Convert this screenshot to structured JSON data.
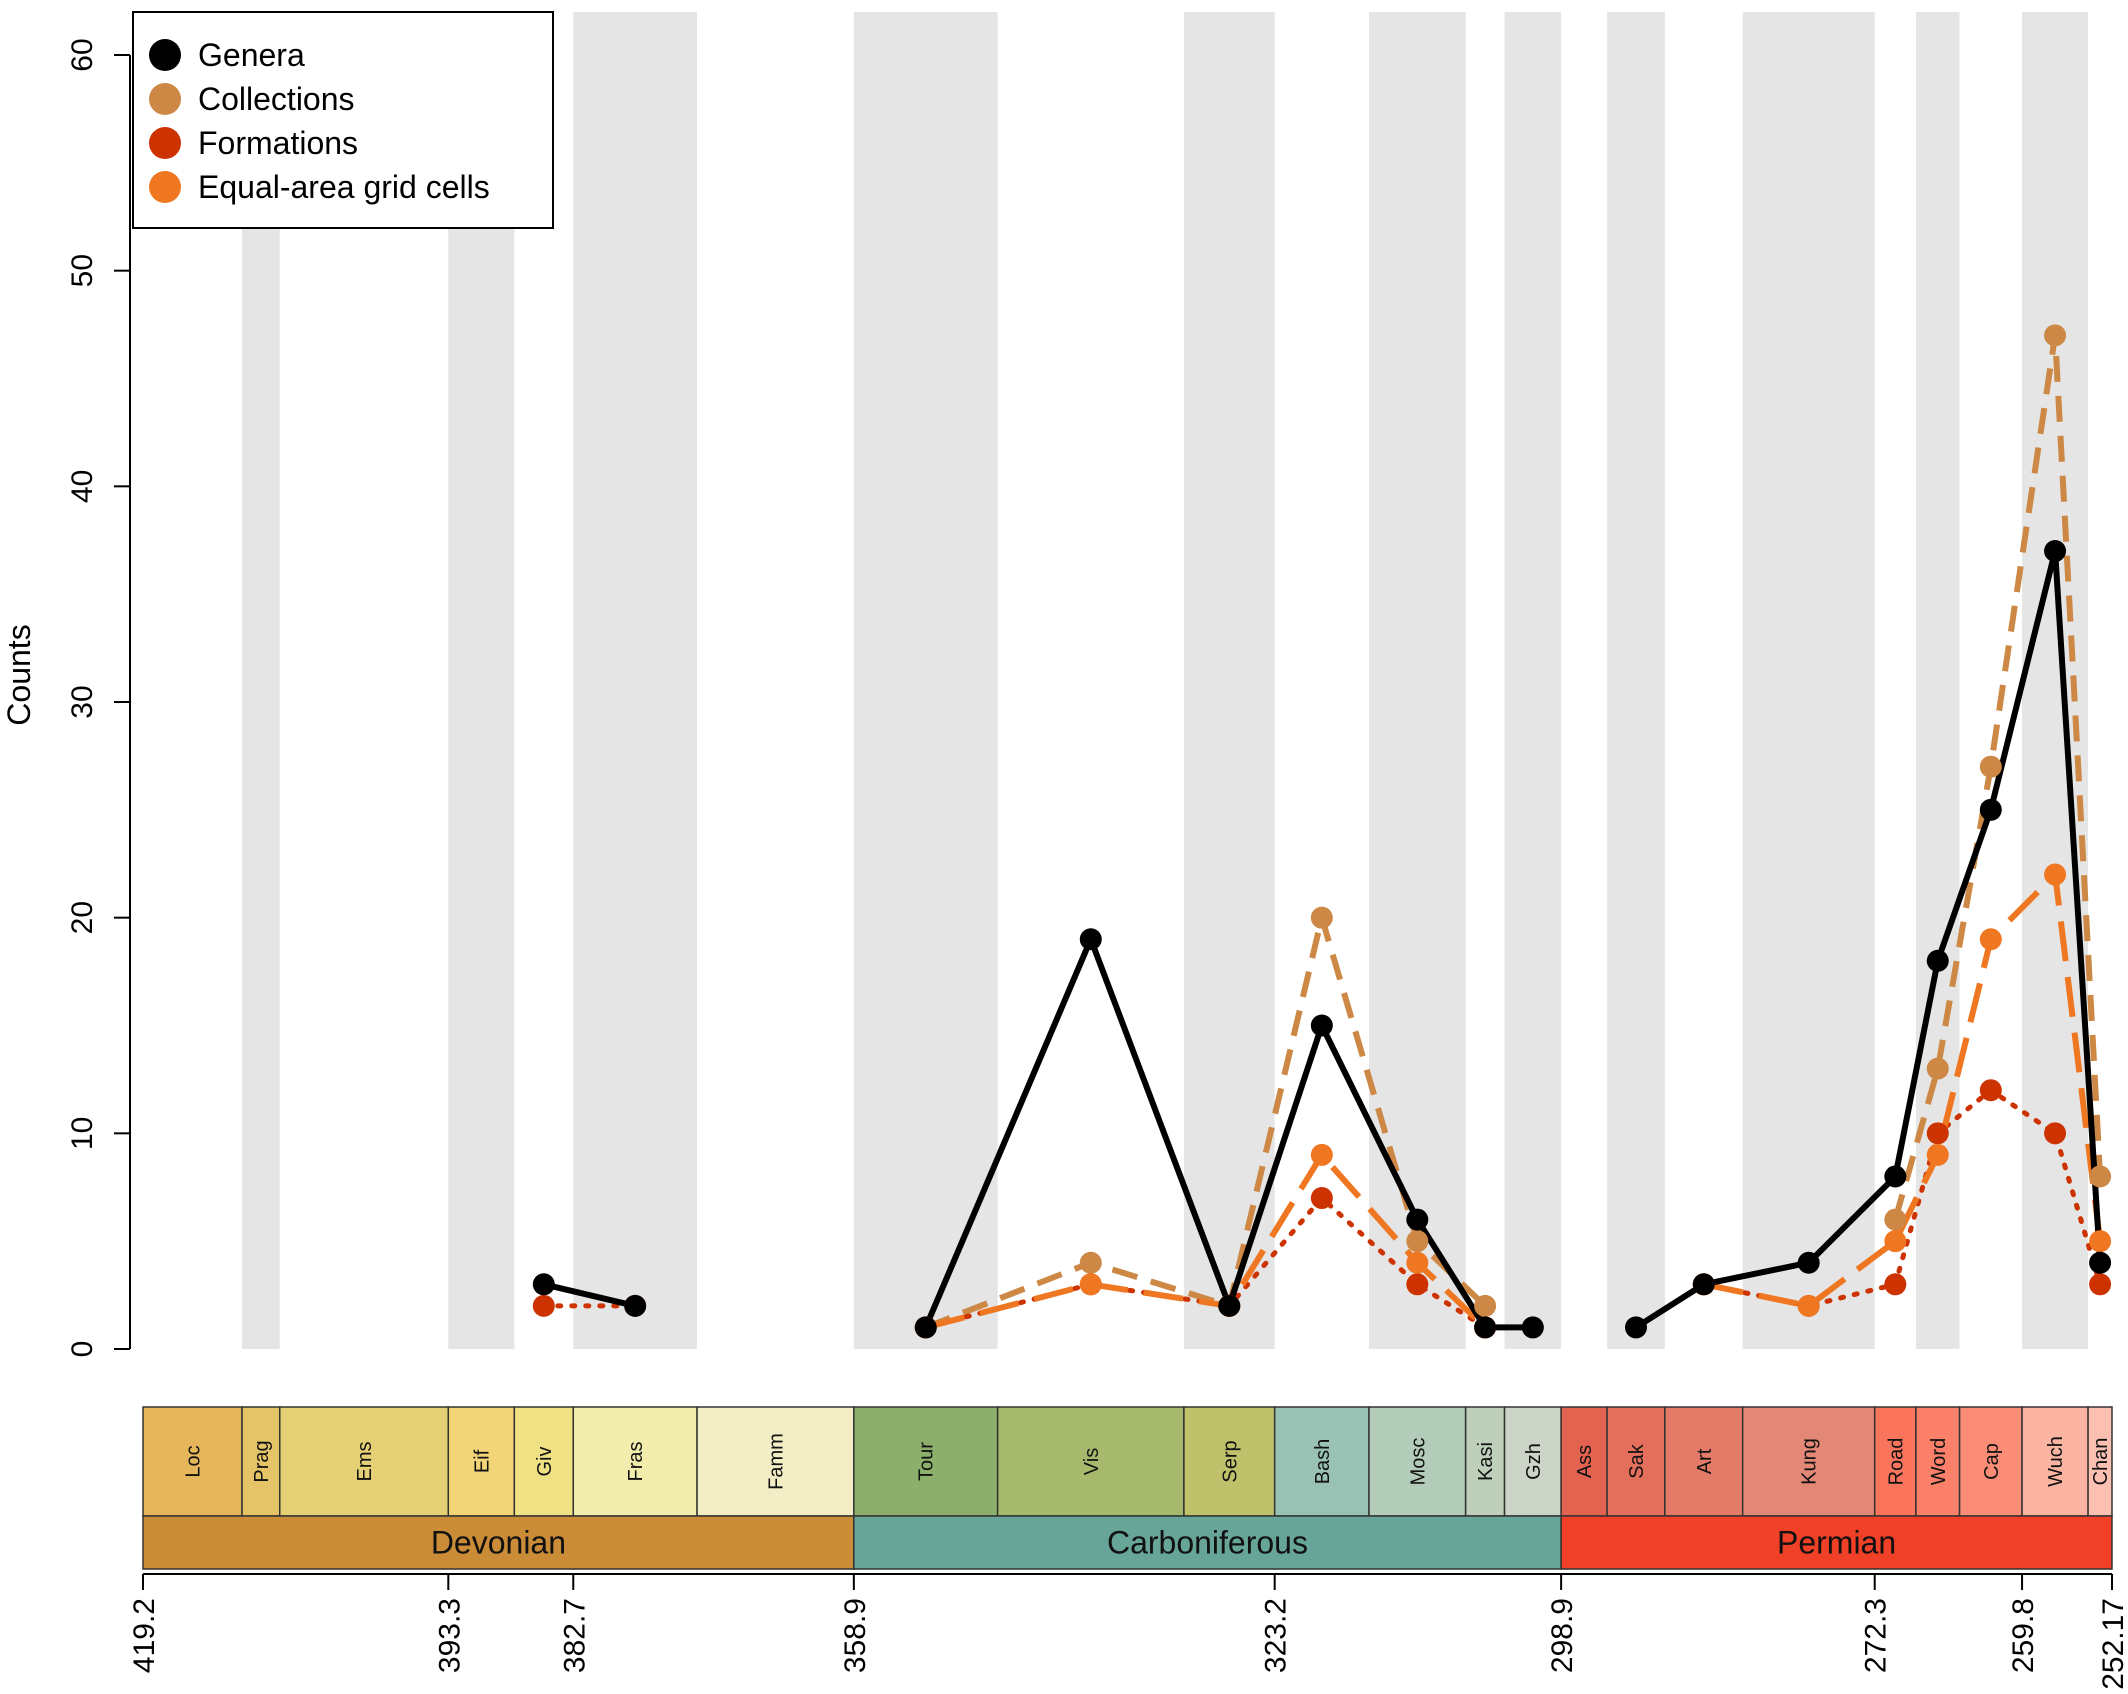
{
  "chart_data": {
    "type": "line",
    "ylabel": "Counts",
    "ylim": [
      0,
      60
    ],
    "y_ticks": [
      "0",
      "10",
      "20",
      "30",
      "40",
      "50",
      "60"
    ],
    "x_axis": {
      "direction": "reversed",
      "range_ma": [
        419.2,
        252.17
      ],
      "tick_labels": [
        "419.2",
        "393.3",
        "382.7",
        "358.9",
        "323.2",
        "298.9",
        "272.3",
        "259.8",
        "252.17"
      ]
    },
    "legend": {
      "position": "top-left",
      "entries": [
        {
          "label": "Genera",
          "color": "#000000"
        },
        {
          "label": "Collections",
          "color": "#CC8844"
        },
        {
          "label": "Formations",
          "color": "#CC3300"
        },
        {
          "label": "Equal-area grid cells",
          "color": "#F07722"
        }
      ]
    },
    "periods": [
      {
        "name": "Devonian",
        "start": 419.2,
        "end": 358.9,
        "color": "#CB8C37"
      },
      {
        "name": "Carboniferous",
        "start": 358.9,
        "end": 298.9,
        "color": "#67A599"
      },
      {
        "name": "Permian",
        "start": 298.9,
        "end": 252.17,
        "color": "#F04028"
      }
    ],
    "stages": [
      {
        "label": "Loc",
        "start": 419.2,
        "end": 410.8,
        "color": "#E5B75A",
        "shaded": false
      },
      {
        "label": "Prag",
        "start": 410.8,
        "end": 407.6,
        "color": "#E5C468",
        "shaded": true
      },
      {
        "label": "Ems",
        "start": 407.6,
        "end": 393.3,
        "color": "#E5D075",
        "shaded": false
      },
      {
        "label": "Eif",
        "start": 393.3,
        "end": 387.7,
        "color": "#F1D576",
        "shaded": true
      },
      {
        "label": "Giv",
        "start": 387.7,
        "end": 382.7,
        "color": "#F1E185",
        "shaded": false
      },
      {
        "label": "Fras",
        "start": 382.7,
        "end": 372.2,
        "color": "#F2EDAD",
        "shaded": true
      },
      {
        "label": "Famm",
        "start": 372.2,
        "end": 358.9,
        "color": "#F2EDC5",
        "shaded": false
      },
      {
        "label": "Tour",
        "start": 358.9,
        "end": 346.7,
        "color": "#8CB06C",
        "shaded": true
      },
      {
        "label": "Vis",
        "start": 346.7,
        "end": 330.9,
        "color": "#A6B96C",
        "shaded": false
      },
      {
        "label": "Serp",
        "start": 330.9,
        "end": 323.2,
        "color": "#BFC26B",
        "shaded": true
      },
      {
        "label": "Bash",
        "start": 323.2,
        "end": 315.2,
        "color": "#99C2B5",
        "shaded": false
      },
      {
        "label": "Mosc",
        "start": 315.2,
        "end": 307.0,
        "color": "#B3CBB9",
        "shaded": true
      },
      {
        "label": "Kasi",
        "start": 307.0,
        "end": 303.7,
        "color": "#BFD0BA",
        "shaded": false
      },
      {
        "label": "Gzh",
        "start": 303.7,
        "end": 298.9,
        "color": "#CCD4C7",
        "shaded": true
      },
      {
        "label": "Ass",
        "start": 298.9,
        "end": 295.0,
        "color": "#E36350",
        "shaded": false
      },
      {
        "label": "Sak",
        "start": 295.0,
        "end": 290.1,
        "color": "#E36F5C",
        "shaded": true
      },
      {
        "label": "Art",
        "start": 290.1,
        "end": 283.5,
        "color": "#E37B68",
        "shaded": false
      },
      {
        "label": "Kung",
        "start": 283.5,
        "end": 272.3,
        "color": "#E38776",
        "shaded": true
      },
      {
        "label": "Road",
        "start": 272.3,
        "end": 268.8,
        "color": "#FB745C",
        "shaded": false
      },
      {
        "label": "Word",
        "start": 268.8,
        "end": 265.1,
        "color": "#FB8069",
        "shaded": true
      },
      {
        "label": "Cap",
        "start": 265.1,
        "end": 259.8,
        "color": "#FB8D76",
        "shaded": false
      },
      {
        "label": "Wuch",
        "start": 259.8,
        "end": 254.2,
        "color": "#FCB4A2",
        "shaded": true
      },
      {
        "label": "Chan",
        "start": 254.2,
        "end": 252.17,
        "color": "#FCC0B2",
        "shaded": false
      }
    ],
    "series": [
      {
        "name": "Genera",
        "color": "#000000",
        "style": "solid",
        "segments": [
          {
            "x": [
              385.2,
              377.45
            ],
            "y": [
              3,
              2
            ]
          },
          {
            "x": [
              352.8,
              338.8,
              327.05,
              319.2,
              311.1,
              305.35,
              301.3
            ],
            "y": [
              1,
              19,
              2,
              15,
              6,
              1,
              1
            ]
          },
          {
            "x": [
              292.55,
              286.8,
              277.9,
              270.55,
              266.95,
              262.45,
              257.0,
              253.18
            ],
            "y": [
              1,
              3,
              4,
              8,
              18,
              25,
              37,
              4
            ]
          }
        ]
      },
      {
        "name": "Collections",
        "color": "#CC8844",
        "style": "dashed",
        "segments": [
          {
            "x": [
              352.8,
              338.8,
              327.05,
              319.2,
              311.1,
              305.35
            ],
            "y": [
              1,
              4,
              2,
              20,
              5,
              2
            ]
          },
          {
            "x": [
              270.55,
              266.95,
              262.45,
              257.0,
              253.18
            ],
            "y": [
              6,
              13,
              27,
              47,
              8
            ]
          }
        ]
      },
      {
        "name": "Formations",
        "color": "#CC3300",
        "style": "dotted",
        "segments": [
          {
            "x": [
              385.2,
              377.45
            ],
            "y": [
              2,
              2
            ]
          },
          {
            "x": [
              352.8,
              338.8,
              327.05,
              319.2,
              311.1,
              305.35
            ],
            "y": [
              1,
              3,
              2,
              7,
              3,
              1
            ]
          },
          {
            "x": [
              286.8,
              277.9,
              270.55,
              266.95,
              262.45,
              257.0,
              253.18
            ],
            "y": [
              3,
              2,
              3,
              10,
              12,
              10,
              3
            ]
          }
        ]
      },
      {
        "name": "Equal-area grid cells",
        "color": "#F07722",
        "style": "longdash",
        "segments": [
          {
            "x": [
              352.8,
              338.8,
              327.05,
              319.2,
              311.1,
              305.35
            ],
            "y": [
              1,
              3,
              2,
              9,
              4,
              1
            ]
          },
          {
            "x": [
              286.8,
              277.9,
              270.55,
              266.95,
              262.45,
              257.0,
              253.18
            ],
            "y": [
              3,
              2,
              5,
              9,
              19,
              22,
              5
            ]
          }
        ]
      }
    ]
  }
}
